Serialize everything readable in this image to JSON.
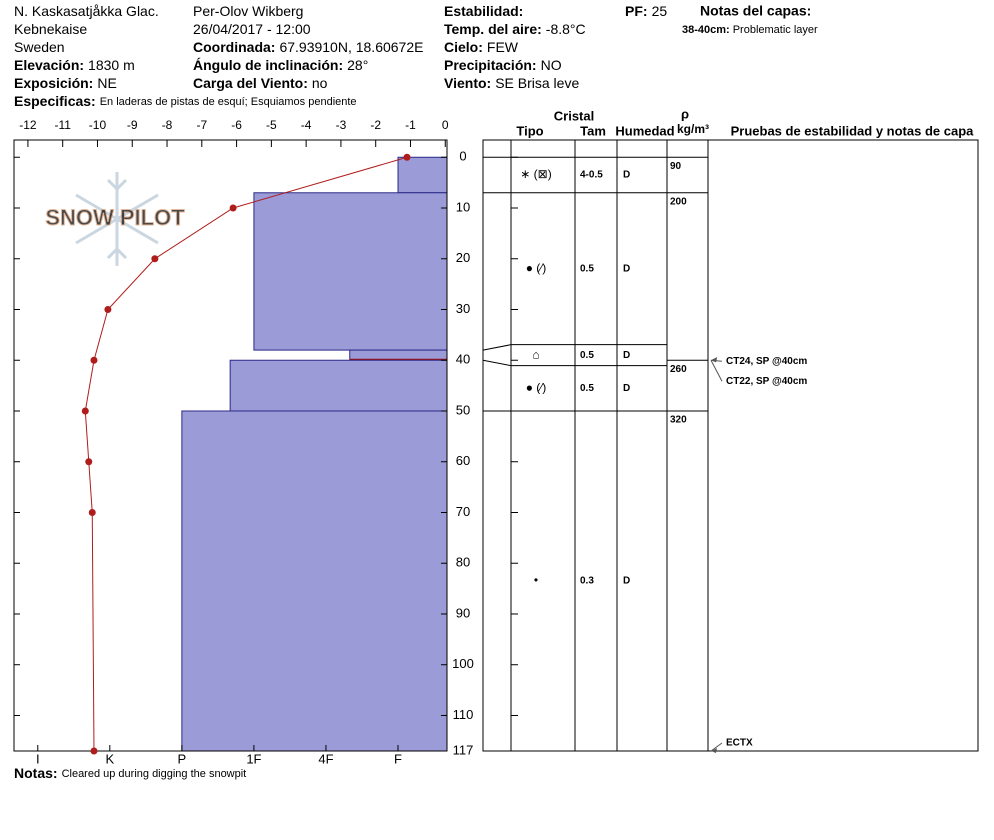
{
  "header": {
    "columns": [
      [
        {
          "text": "N. Kaskasatjåkka Glac."
        },
        {
          "text": "Kebnekaise"
        },
        {
          "text": "Sweden"
        },
        {
          "label": "Elevación:",
          "value": "1830 m"
        },
        {
          "label": "Exposición:",
          "value": "NE"
        }
      ],
      [
        {
          "text": "Per-Olov Wikberg"
        },
        {
          "text": "26/04/2017 - 12:00"
        },
        {
          "label": "Coordinada:",
          "value": "67.93910N, 18.60672E"
        },
        {
          "label": "Ángulo de inclinación:",
          "value": "28°"
        },
        {
          "label": "Carga del Viento:",
          "value": "no"
        }
      ],
      [
        {
          "label": "Estabilidad:"
        },
        {
          "label": "Temp. del aire:",
          "value": "-8.8°C"
        },
        {
          "label": "Cielo:",
          "value": "FEW"
        },
        {
          "label": "Precipitación:",
          "value": "NO"
        },
        {
          "label": "Viento:",
          "value": "SE Brisa leve"
        }
      ]
    ],
    "specifics": {
      "label": "Especificas:",
      "value": "En laderas de pistas de esquí; Esquiamos pendiente"
    },
    "pf": {
      "label": "PF:",
      "value": "25"
    },
    "layer_notes": {
      "title": "Notas del capas:",
      "items": [
        {
          "label": "38-40cm:",
          "value": "Problematic layer"
        }
      ]
    },
    "logo": "SNOW PILOT"
  },
  "footer": {
    "notes": {
      "label": "Notas:",
      "value": "Cleared up during digging the snowpit"
    }
  },
  "chart_data": {
    "type": "snow-profile",
    "depth_lim": [
      -3.4,
      117
    ],
    "depth_ticks": [
      0,
      10,
      20,
      30,
      40,
      50,
      60,
      70,
      80,
      90,
      100,
      110,
      117
    ],
    "temp_lim": [
      -12.4,
      0.05
    ],
    "temp_ticks": [
      -12,
      -11,
      -10,
      -9,
      -8,
      -7,
      -6,
      -5,
      -4,
      -3,
      -2,
      -1,
      0
    ],
    "temperature": {
      "color": "#b01c1c",
      "depths": [
        0,
        10,
        20,
        30,
        40,
        50,
        60,
        70,
        117
      ],
      "values": [
        -1.1,
        -6.1,
        -8.35,
        -9.7,
        -10.1,
        -10.35,
        -10.25,
        -10.15,
        -10.1
      ]
    },
    "hardness_lim": [
      0.32,
      6.33
    ],
    "hardness_ticks": [
      {
        "value": 1,
        "label": "F"
      },
      {
        "value": 2,
        "label": "4F"
      },
      {
        "value": 3,
        "label": "1F"
      },
      {
        "value": 4,
        "label": "P"
      },
      {
        "value": 5,
        "label": "K"
      },
      {
        "value": 6,
        "label": "I"
      }
    ],
    "hardness_color": "#9b9bd7",
    "concern_color": "#a01010",
    "layers": [
      {
        "top": 0,
        "bottom": 7,
        "hardness": 1,
        "grain_type": "∗ (⊠)",
        "grain_size": "4-0.5",
        "moisture": "D"
      },
      {
        "top": 7,
        "bottom": 38,
        "hardness": 3,
        "grain_type": "● (⁄)",
        "grain_size": 0.5,
        "moisture": "D"
      },
      {
        "top": 38,
        "bottom": 40,
        "hardness": 1.67,
        "grain_type": "⌂",
        "grain_size": 0.5,
        "moisture": "D",
        "concern": true
      },
      {
        "top": 40,
        "bottom": 50,
        "hardness": 3.33,
        "grain_type": "● (⁄)",
        "grain_size": 0.5,
        "moisture": "D"
      },
      {
        "top": 50,
        "bottom": 117,
        "hardness": 4,
        "grain_type": "•",
        "grain_size": 0.3,
        "moisture": "D"
      }
    ],
    "table_headers": {
      "crystal": "Cristal",
      "type": "Tipo",
      "size": "Tam",
      "moisture": "Humedad",
      "density_symbol": "ρ",
      "density_unit": "kg/m³",
      "tests": "Pruebas de estabilidad y notas de capa"
    },
    "densities": {
      "depths": [
        0,
        7,
        40,
        50
      ],
      "values": [
        90,
        200,
        260,
        320
      ]
    },
    "tests": [
      {
        "depth": 40,
        "text": "CT24, SP @40cm"
      },
      {
        "depth": 40,
        "text": "CT22, SP @40cm"
      },
      {
        "depth": 117,
        "text": "ECTX"
      }
    ]
  }
}
